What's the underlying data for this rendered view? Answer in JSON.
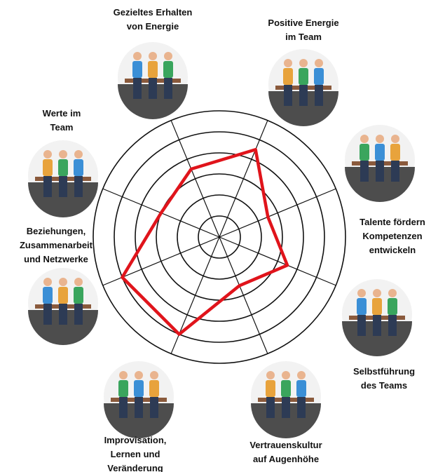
{
  "chart_data": {
    "type": "radar",
    "categories": [
      "Gezieltes Erhalten\nvon Energie",
      "Positive Energie\nim Team",
      "Talente fördern\nKompetenzen\nentwickeln",
      "Selbstführung\ndes Teams",
      "Vertrauenskultur\nauf Augenhöhe",
      "Improvisation,\nLernen und\nVeränderung",
      "Beziehungen,\nZusammenarbeit\nund Netzwerke",
      "Werte im\nTeam"
    ],
    "values": [
      3.5,
      4.5,
      2.5,
      3.5,
      2.5,
      5,
      5,
      3
    ],
    "color": "#e0141b",
    "ylim": [
      0,
      6
    ],
    "yticks": [
      1,
      2,
      3,
      4,
      5,
      6
    ],
    "grid": true
  }
}
